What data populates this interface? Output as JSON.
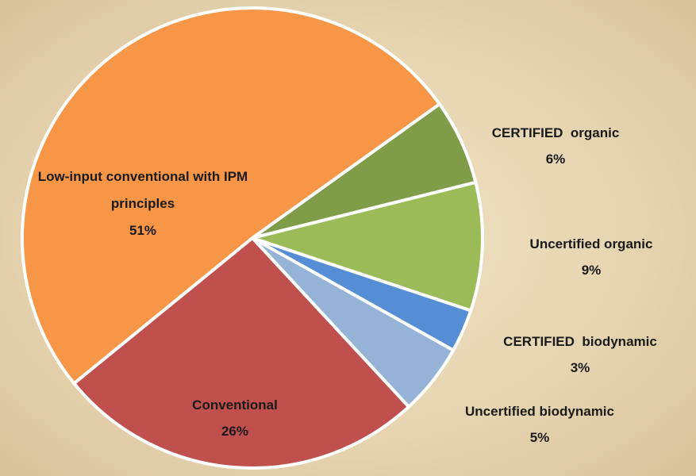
{
  "chart_data": {
    "type": "pie",
    "categories": [
      "CERTIFIED  organic",
      "Uncertified organic",
      "CERTIFIED  biodynamic",
      "Uncertified biodynamic",
      "Conventional",
      "Low-input conventional with IPM principles"
    ],
    "values": [
      6,
      9,
      3,
      5,
      26,
      51
    ],
    "value_labels": [
      "6%",
      "9%",
      "3%",
      "5%",
      "26%",
      "51%"
    ],
    "colors": [
      "#7f9c48",
      "#9bbb59",
      "#558ed5",
      "#95b3d7",
      "#c0504d",
      "#f79646"
    ]
  }
}
